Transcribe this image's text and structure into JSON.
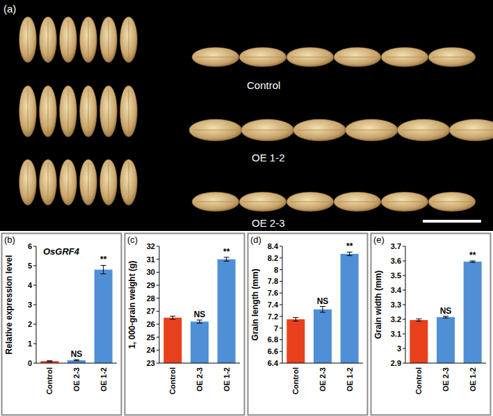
{
  "panel_a": {
    "label": "(a)",
    "rows": [
      "Control",
      "OE 1-2",
      "OE 2-3"
    ]
  },
  "chart_data": [
    {
      "type": "bar",
      "label": "(b)",
      "title": "OsGRF4",
      "y_label": "Relative expression level",
      "categories": [
        "Control",
        "OE 2-3",
        "OE 1-2"
      ],
      "values": [
        0.1,
        0.15,
        4.8
      ],
      "errors": [
        0.02,
        0.03,
        0.22
      ],
      "colors": [
        "#e8401c",
        "#4f8fd6",
        "#4f8fd6"
      ],
      "ylim": [
        0,
        6
      ],
      "yticks": [
        0,
        1,
        2,
        3,
        4,
        5,
        6
      ],
      "annotations": [
        {
          "text": "NS",
          "category": "OE 2-3"
        },
        {
          "text": "**",
          "category": "OE 1-2"
        }
      ]
    },
    {
      "type": "bar",
      "label": "(c)",
      "y_label": "1, 000-grain weight (g)",
      "categories": [
        "Control",
        "OE 2-3",
        "OE 1-2"
      ],
      "values": [
        26.5,
        26.2,
        31.0
      ],
      "errors": [
        0.12,
        0.12,
        0.15
      ],
      "colors": [
        "#e8401c",
        "#4f8fd6",
        "#4f8fd6"
      ],
      "ylim": [
        23,
        32
      ],
      "yticks": [
        23,
        24,
        25,
        26,
        27,
        28,
        29,
        30,
        31,
        32
      ],
      "annotations": [
        {
          "text": "NS",
          "category": "OE 2-3"
        },
        {
          "text": "**",
          "category": "OE 1-2"
        }
      ]
    },
    {
      "type": "bar",
      "label": "(d)",
      "y_label": "Grain length (mm)",
      "categories": [
        "Control",
        "OE 2-3",
        "OE 1-2"
      ],
      "values": [
        7.15,
        7.32,
        8.27
      ],
      "errors": [
        0.03,
        0.05,
        0.03
      ],
      "colors": [
        "#e8401c",
        "#4f8fd6",
        "#4f8fd6"
      ],
      "ylim": [
        6.4,
        8.4
      ],
      "yticks": [
        6.4,
        6.6,
        6.8,
        7,
        7.2,
        7.4,
        7.6,
        7.8,
        8,
        8.2,
        8.4
      ],
      "annotations": [
        {
          "text": "NS",
          "category": "OE 2-3"
        },
        {
          "text": "**",
          "category": "OE 1-2"
        }
      ]
    },
    {
      "type": "bar",
      "label": "(e)",
      "y_label": "Grain width (mm)",
      "categories": [
        "Control",
        "OE 2-3",
        "OE 1-2"
      ],
      "values": [
        3.195,
        3.215,
        3.595
      ],
      "errors": [
        0.008,
        0.006,
        0.005
      ],
      "colors": [
        "#e8401c",
        "#4f8fd6",
        "#4f8fd6"
      ],
      "ylim": [
        2.9,
        3.7
      ],
      "yticks": [
        2.9,
        3,
        3.1,
        3.2,
        3.3,
        3.4,
        3.5,
        3.6,
        3.7
      ],
      "annotations": [
        {
          "text": "NS",
          "category": "OE 2-3"
        },
        {
          "text": "**",
          "category": "OE 1-2"
        }
      ]
    }
  ]
}
